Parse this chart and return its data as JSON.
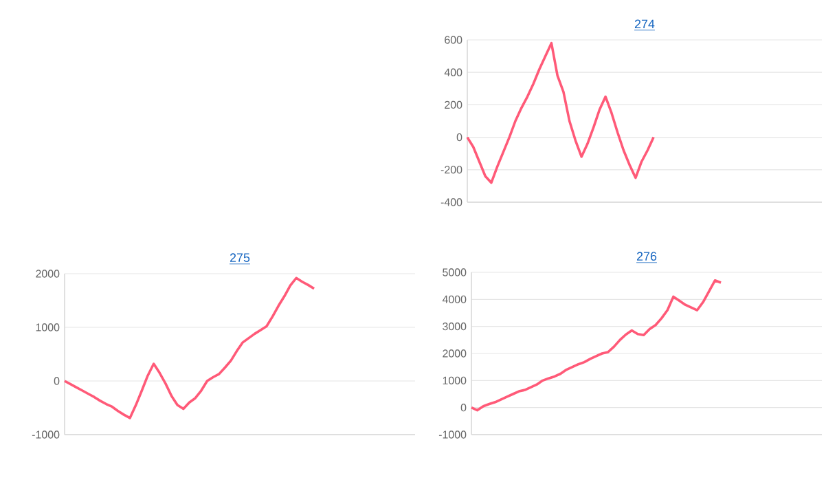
{
  "chart_data": [
    {
      "type": "line",
      "title": "274",
      "color": "#ff5a78",
      "grid": "y",
      "ylim": [
        -400,
        600
      ],
      "yticks": [
        -400,
        -200,
        0,
        200,
        400,
        600
      ],
      "categories": [
        null,
        null,
        null,
        null,
        null,
        null,
        null,
        null,
        null,
        null,
        null,
        null,
        null,
        null,
        null,
        null,
        null,
        null,
        null,
        null,
        null,
        null,
        null,
        null,
        null,
        null,
        null,
        null,
        null,
        null,
        null,
        null,
        null,
        null,
        null,
        null,
        null,
        null,
        null,
        null,
        null,
        null,
        null,
        null,
        null,
        null,
        null,
        null,
        null,
        null,
        null,
        null,
        null,
        null,
        null,
        null,
        null,
        null,
        null,
        null
      ],
      "values": [
        0,
        -60,
        -150,
        -240,
        -280,
        -180,
        -90,
        0,
        100,
        180,
        250,
        330,
        420,
        500,
        580,
        380,
        280,
        100,
        -20,
        -120,
        -40,
        60,
        170,
        250,
        150,
        30,
        -80,
        -170,
        -250,
        -150,
        -80,
        0,
        null,
        null,
        null,
        null,
        null,
        null,
        null,
        null,
        null,
        null,
        null,
        null,
        null,
        null,
        null,
        null,
        null,
        null,
        null,
        null,
        null,
        null,
        null,
        null,
        null,
        null,
        null,
        null
      ]
    },
    {
      "type": "line",
      "title": "275",
      "color": "#ff5a78",
      "grid": "y",
      "ylim": [
        -1000,
        2000
      ],
      "yticks": [
        -1000,
        0,
        1000,
        2000
      ],
      "categories": [
        null,
        null,
        null,
        null,
        null,
        null,
        null,
        null,
        null,
        null,
        null,
        null,
        null,
        null,
        null,
        null,
        null,
        null,
        null,
        null,
        null,
        null,
        null,
        null,
        null,
        null,
        null,
        null,
        null,
        null,
        null,
        null,
        null,
        null,
        null,
        null,
        null,
        null,
        null,
        null,
        null,
        null,
        null,
        null,
        null,
        null,
        null,
        null,
        null,
        null,
        null,
        null,
        null,
        null,
        null,
        null,
        null,
        null,
        null,
        null
      ],
      "values": [
        0,
        -60,
        -120,
        -180,
        -240,
        -300,
        -370,
        -430,
        -480,
        -560,
        -630,
        -690,
        -450,
        -180,
        100,
        320,
        150,
        -50,
        -280,
        -450,
        -520,
        -400,
        -320,
        -180,
        0,
        70,
        130,
        250,
        380,
        560,
        720,
        800,
        880,
        950,
        1020,
        1200,
        1400,
        1580,
        1780,
        1920,
        1850,
        1790,
        1720,
        null,
        null,
        null,
        null,
        null,
        null,
        null,
        null,
        null,
        null,
        null,
        null,
        null,
        null,
        null,
        null,
        null
      ]
    },
    {
      "type": "line",
      "title": "276",
      "color": "#ff5a78",
      "grid": "y",
      "ylim": [
        -1000,
        5000
      ],
      "yticks": [
        -1000,
        0,
        1000,
        2000,
        3000,
        4000,
        5000
      ],
      "categories": [
        null,
        null,
        null,
        null,
        null,
        null,
        null,
        null,
        null,
        null,
        null,
        null,
        null,
        null,
        null,
        null,
        null,
        null,
        null,
        null,
        null,
        null,
        null,
        null,
        null,
        null,
        null,
        null,
        null,
        null,
        null,
        null,
        null,
        null,
        null,
        null,
        null,
        null,
        null,
        null,
        null,
        null,
        null,
        null,
        null,
        null,
        null,
        null,
        null,
        null,
        null,
        null,
        null,
        null,
        null,
        null,
        null,
        null,
        null,
        null
      ],
      "values": [
        0,
        -100,
        50,
        130,
        200,
        300,
        400,
        500,
        600,
        650,
        750,
        850,
        1000,
        1080,
        1150,
        1250,
        1400,
        1500,
        1600,
        1680,
        1800,
        1900,
        2000,
        2050,
        2250,
        2500,
        2700,
        2850,
        2720,
        2680,
        2900,
        3050,
        3300,
        3600,
        4100,
        3950,
        3800,
        3700,
        3600,
        3900,
        4300,
        4700,
        4620,
        null,
        null,
        null,
        null,
        null,
        null,
        null,
        null,
        null,
        null,
        null,
        null,
        null,
        null,
        null,
        null,
        null
      ]
    }
  ]
}
